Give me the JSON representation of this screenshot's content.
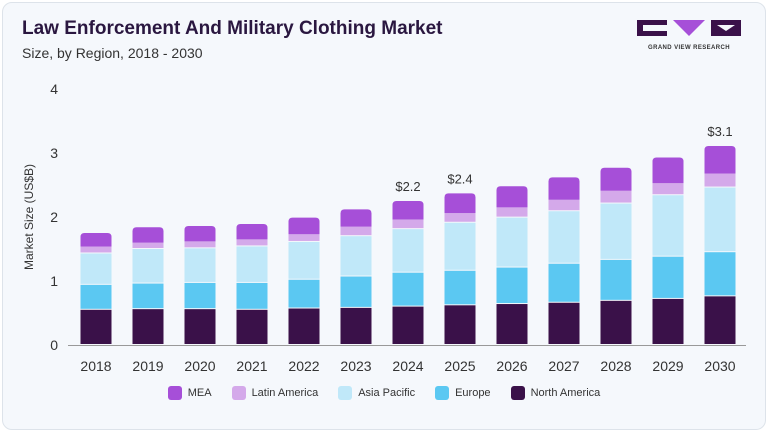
{
  "header": {
    "title": "Law Enforcement And Military Clothing Market",
    "subtitle": "Size, by Region, 2018 - 2030"
  },
  "logo": {
    "text": "GRAND VIEW RESEARCH"
  },
  "chart_data": {
    "type": "bar",
    "stacked": true,
    "title": "Law Enforcement And Military Clothing Market",
    "subtitle": "Size, by Region, 2018 - 2030",
    "xlabel": "",
    "ylabel": "Market Size (US$B)",
    "ylim": [
      0,
      4
    ],
    "yticks": [
      "0",
      "1",
      "2",
      "3",
      "4"
    ],
    "grid": false,
    "legend_position": "bottom",
    "categories": [
      "2018",
      "2019",
      "2020",
      "2021",
      "2022",
      "2023",
      "2024",
      "2025",
      "2026",
      "2027",
      "2028",
      "2029",
      "2030"
    ],
    "series": [
      {
        "name": "North America",
        "color": "#3a1149",
        "values": [
          0.55,
          0.56,
          0.56,
          0.55,
          0.57,
          0.58,
          0.6,
          0.62,
          0.64,
          0.66,
          0.69,
          0.72,
          0.76
        ]
      },
      {
        "name": "Europe",
        "color": "#5bc8f2",
        "values": [
          0.39,
          0.4,
          0.41,
          0.42,
          0.45,
          0.49,
          0.53,
          0.54,
          0.57,
          0.61,
          0.64,
          0.66,
          0.69
        ]
      },
      {
        "name": "Asia Pacific",
        "color": "#c0e8f9",
        "values": [
          0.49,
          0.54,
          0.54,
          0.57,
          0.59,
          0.63,
          0.68,
          0.75,
          0.78,
          0.82,
          0.88,
          0.96,
          1.01
        ]
      },
      {
        "name": "Latin America",
        "color": "#d4a9ea",
        "values": [
          0.11,
          0.1,
          0.11,
          0.11,
          0.12,
          0.15,
          0.15,
          0.15,
          0.16,
          0.18,
          0.2,
          0.19,
          0.22
        ]
      },
      {
        "name": "MEA",
        "color": "#a64fd8",
        "values": [
          0.21,
          0.24,
          0.24,
          0.24,
          0.26,
          0.27,
          0.29,
          0.31,
          0.33,
          0.35,
          0.36,
          0.4,
          0.43
        ]
      }
    ],
    "annotations": [
      {
        "category": "2024",
        "text": "$2.2"
      },
      {
        "category": "2025",
        "text": "$2.4"
      },
      {
        "category": "2030",
        "text": "$3.1"
      }
    ]
  }
}
